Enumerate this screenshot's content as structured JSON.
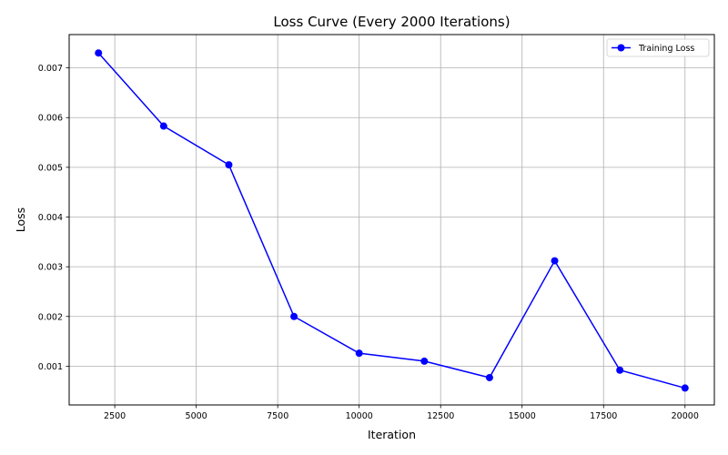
{
  "chart_data": {
    "type": "line",
    "title": "Loss Curve (Every 2000 Iterations)",
    "xlabel": "Iteration",
    "ylabel": "Loss",
    "xlim": [
      1100,
      20900
    ],
    "ylim": [
      0.00022,
      0.00767
    ],
    "x_ticks": [
      2500,
      5000,
      7500,
      10000,
      12500,
      15000,
      17500,
      20000
    ],
    "y_ticks": [
      0.001,
      0.002,
      0.003,
      0.004,
      0.005,
      0.006,
      0.007
    ],
    "grid": true,
    "legend_position": "top-right",
    "x": [
      2000,
      4000,
      6000,
      8000,
      10000,
      12000,
      14000,
      16000,
      18000,
      20000
    ],
    "series": [
      {
        "name": "Training Loss",
        "color": "#0000ff",
        "marker": "circle",
        "values": [
          0.0073,
          0.00583,
          0.00505,
          0.002,
          0.00126,
          0.0011,
          0.00077,
          0.00312,
          0.00092,
          0.00056
        ]
      }
    ]
  }
}
